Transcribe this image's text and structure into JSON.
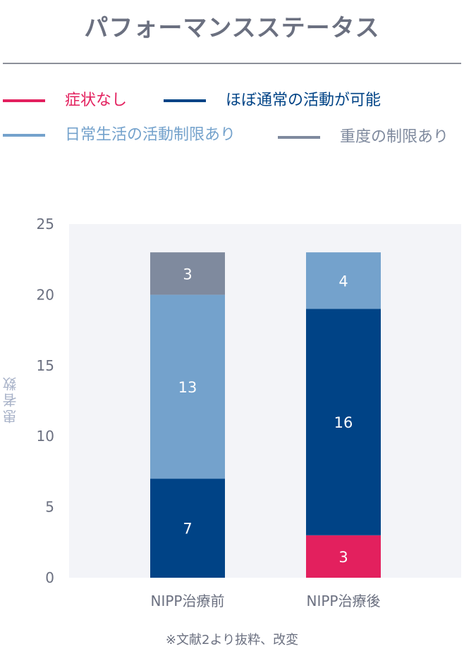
{
  "title": "パフォーマンスステータス",
  "footnote": "※文献2より抜粋、改変",
  "legend": [
    {
      "label": "症状なし",
      "color": "#e3205e",
      "text_color": "#e3205e"
    },
    {
      "label": "ほぼ通常の活動が可能",
      "color": "#004386",
      "text_color": "#004386"
    },
    {
      "label": "日常生活の活動制限あり",
      "color": "#74a2cc",
      "text_color": "#74a2cc"
    },
    {
      "label": "重度の制限あり",
      "color": "#7f8a9e",
      "text_color": "#7f8a9e"
    }
  ],
  "chart_data": {
    "type": "bar",
    "stacked": true,
    "categories": [
      "NIPP治療前",
      "NIPP治療後"
    ],
    "series": [
      {
        "name": "症状なし",
        "color": "#e3205e",
        "values": [
          0,
          3
        ]
      },
      {
        "name": "ほぼ通常の活動が可能",
        "color": "#004386",
        "values": [
          7,
          16
        ]
      },
      {
        "name": "日常生活の活動制限あり",
        "color": "#74a2cc",
        "values": [
          13,
          4
        ]
      },
      {
        "name": "重度の制限あり",
        "color": "#7f8a9e",
        "values": [
          3,
          0
        ]
      }
    ],
    "ylabel": "患者数",
    "ylim": [
      0,
      25
    ],
    "yticks": [
      0,
      5,
      10,
      15,
      20,
      25
    ],
    "plot_background": "#f3f4f8",
    "grid": false,
    "data_labels": true
  }
}
